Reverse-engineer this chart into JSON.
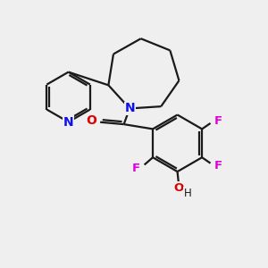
{
  "background_color": "#efefef",
  "bond_color": "#1a1a1a",
  "bond_width": 1.6,
  "n_color": "#1010ee",
  "o_color": "#dd0000",
  "f_color": "#dd00dd",
  "figsize": [
    3.0,
    3.0
  ],
  "dpi": 100,
  "xlim": [
    0,
    10
  ],
  "ylim": [
    0,
    10
  ]
}
